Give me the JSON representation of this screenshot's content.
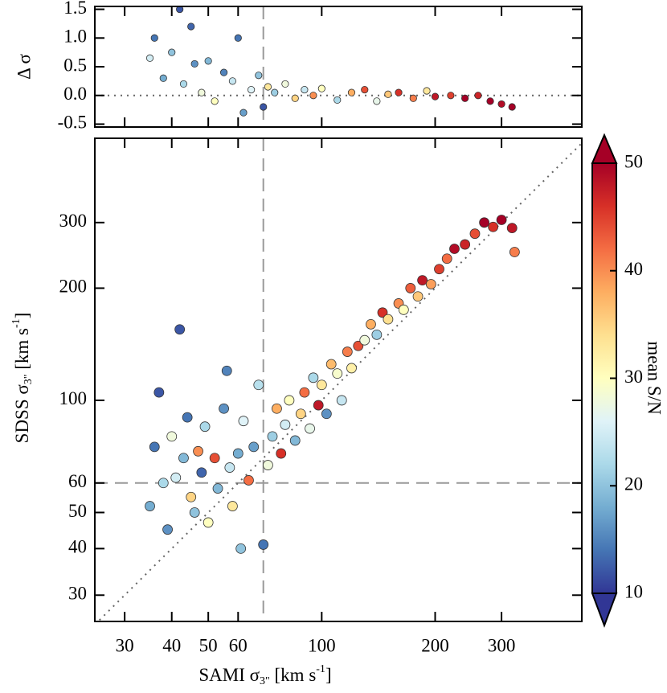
{
  "chart_data": [
    {
      "type": "scatter",
      "xlabel": {
        "main": "SAMI σ",
        "sub": "3\"",
        "unit": " [km s",
        "sup": "-1",
        "end": "]"
      },
      "ylabel": {
        "main": "SDSS σ",
        "sub": "3\"",
        "unit": " [km s",
        "sup": "-1",
        "end": "]"
      },
      "log_x": true,
      "log_y": true,
      "xlim": [
        25,
        490
      ],
      "ylim": [
        25.5,
        505
      ],
      "xticks": [
        30,
        40,
        50,
        60,
        100,
        200,
        300
      ],
      "yticks": [
        30,
        40,
        50,
        60,
        100,
        200,
        300
      ],
      "ref_x": 70,
      "ref_y": 60,
      "one_to_one": true,
      "x": [
        35,
        36,
        37,
        38,
        39,
        40,
        41,
        42,
        43,
        44,
        45,
        46,
        47,
        48,
        49,
        50,
        52,
        53,
        55,
        56,
        57,
        58,
        60,
        61,
        62,
        64,
        66,
        68,
        70,
        72,
        74,
        76,
        78,
        80,
        82,
        85,
        88,
        90,
        93,
        95,
        98,
        100,
        103,
        106,
        110,
        113,
        117,
        120,
        125,
        130,
        135,
        140,
        145,
        150,
        160,
        165,
        172,
        180,
        185,
        195,
        205,
        215,
        225,
        240,
        255,
        270,
        285,
        300,
        320,
        325
      ],
      "y": [
        52,
        75,
        105,
        60,
        45,
        80,
        62,
        155,
        70,
        90,
        55,
        50,
        73,
        64,
        85,
        47,
        70,
        58,
        95,
        120,
        66,
        52,
        72,
        40,
        88,
        61,
        75,
        110,
        41,
        67,
        80,
        95,
        72,
        86,
        100,
        78,
        92,
        105,
        84,
        115,
        97,
        110,
        92,
        125,
        118,
        100,
        135,
        122,
        140,
        145,
        160,
        150,
        172,
        165,
        182,
        175,
        200,
        190,
        210,
        205,
        225,
        240,
        255,
        262,
        280,
        300,
        292,
        305,
        290,
        250
      ],
      "sn": [
        18,
        14,
        12,
        22,
        16,
        28,
        25,
        12,
        19,
        14,
        35,
        20,
        40,
        13,
        22,
        30,
        44,
        19,
        16,
        15,
        24,
        33,
        18,
        20,
        26,
        42,
        17,
        23,
        14,
        28,
        21,
        38,
        46,
        25,
        30,
        19,
        35,
        42,
        27,
        22,
        48,
        33,
        16,
        37,
        29,
        24,
        41,
        32,
        44,
        28,
        38,
        21,
        46,
        34,
        40,
        30,
        43,
        36,
        48,
        39,
        45,
        42,
        49,
        47,
        44,
        50,
        46,
        50,
        48,
        41
      ],
      "colorbar": {
        "label": "mean S/N",
        "lim": [
          10,
          50
        ],
        "ticks": [
          10,
          20,
          30,
          40,
          50
        ],
        "colors": [
          "#313695",
          "#4575b4",
          "#74add1",
          "#abd9e9",
          "#e0f3f8",
          "#ffffbf",
          "#fee090",
          "#fdae61",
          "#f46d43",
          "#d73027",
          "#a50026"
        ]
      }
    },
    {
      "type": "scatter",
      "ylabel": "Δ σ",
      "log_x": true,
      "xlim": [
        25,
        490
      ],
      "ylim": [
        -0.55,
        1.55
      ],
      "xticks": [
        30,
        40,
        50,
        60,
        100,
        200,
        300
      ],
      "yticks": [
        1.5,
        {
          "value": 1.0,
          "label": "1.0"
        },
        0.5,
        {
          "value": 0.0,
          "label": "0.0"
        },
        -0.5
      ],
      "ref_x": 70,
      "hline": 0,
      "x": [
        35,
        36,
        38,
        40,
        42,
        43,
        45,
        46,
        48,
        50,
        52,
        55,
        58,
        60,
        62,
        65,
        68,
        70,
        72,
        75,
        80,
        85,
        90,
        95,
        100,
        110,
        120,
        130,
        140,
        150,
        160,
        175,
        190,
        200,
        220,
        240,
        260,
        280,
        300,
        320
      ],
      "y": [
        0.65,
        1.0,
        0.3,
        0.75,
        1.5,
        0.2,
        1.2,
        0.55,
        0.05,
        0.6,
        -0.1,
        0.4,
        0.25,
        1.0,
        -0.3,
        0.1,
        0.35,
        -0.2,
        0.15,
        0.05,
        0.2,
        -0.05,
        0.1,
        0.0,
        0.12,
        -0.08,
        0.05,
        0.1,
        -0.1,
        0.02,
        0.05,
        -0.05,
        0.08,
        -0.02,
        0.0,
        -0.05,
        0.0,
        -0.1,
        -0.15,
        -0.2
      ],
      "sn": [
        25,
        14,
        18,
        20,
        12,
        22,
        13,
        16,
        28,
        19,
        30,
        15,
        24,
        14,
        17,
        26,
        20,
        12,
        33,
        21,
        28,
        35,
        24,
        40,
        30,
        22,
        38,
        44,
        27,
        36,
        46,
        41,
        33,
        48,
        45,
        50,
        47,
        50,
        49,
        50
      ]
    }
  ]
}
